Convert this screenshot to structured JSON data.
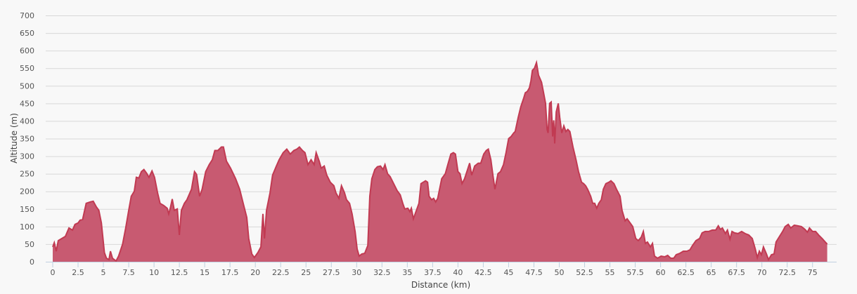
{
  "chart_data": {
    "type": "area",
    "title": "",
    "xlabel": "Distance (km)",
    "ylabel": "Altitude (m)",
    "xlim": [
      0,
      77.7
    ],
    "ylim": [
      0,
      700
    ],
    "x_ticks": [
      0,
      2.5,
      5,
      7.5,
      10,
      12.5,
      15,
      17.5,
      20,
      22.5,
      25,
      27.5,
      30,
      32.5,
      35,
      37.5,
      40,
      42.5,
      45,
      47.5,
      50,
      52.5,
      55,
      57.5,
      60,
      62.5,
      65,
      67.5,
      70,
      72.5,
      75
    ],
    "y_ticks": [
      0,
      50,
      100,
      150,
      200,
      250,
      300,
      350,
      400,
      450,
      500,
      550,
      600,
      650,
      700
    ],
    "grid": "horizontal",
    "legend": "none",
    "colors": {
      "fill": "#c85a71",
      "line": "#c13a52",
      "grid": "#d8d8d8",
      "axis": "#c0d0e0"
    },
    "series": [
      {
        "x": [
          0,
          0.15,
          0.35,
          0.55,
          0.9,
          1.25,
          1.6,
          1.95,
          2.2,
          2.5,
          2.7,
          2.95,
          3.3,
          3.7,
          4.0,
          4.3,
          4.55,
          4.8,
          5.1,
          5.3,
          5.55,
          5.7,
          5.9,
          6.25,
          6.5,
          6.9,
          7.2,
          7.5,
          7.75,
          8.05,
          8.25,
          8.5,
          8.75,
          9.0,
          9.3,
          9.5,
          9.8,
          10.05,
          10.35,
          10.6,
          10.95,
          11.3,
          11.45,
          11.6,
          11.8,
          12.0,
          12.3,
          12.5,
          12.7,
          13.0,
          13.25,
          13.7,
          14.0,
          14.2,
          14.5,
          14.75,
          15.1,
          15.45,
          15.75,
          16.0,
          16.3,
          16.65,
          16.85,
          17.15,
          17.55,
          18.05,
          18.45,
          18.8,
          19.15,
          19.35,
          19.65,
          19.9,
          20.25,
          20.55,
          20.75,
          20.9,
          21.1,
          21.45,
          21.7,
          22.05,
          22.35,
          22.75,
          23.1,
          23.45,
          23.8,
          24.1,
          24.35,
          24.65,
          24.9,
          25.2,
          25.5,
          25.8,
          26.0,
          26.3,
          26.5,
          26.8,
          27.05,
          27.4,
          27.75,
          27.95,
          28.25,
          28.5,
          28.8,
          29.0,
          29.3,
          29.55,
          29.85,
          30.05,
          30.25,
          30.5,
          30.8,
          31.1,
          31.3,
          31.5,
          31.8,
          32.05,
          32.35,
          32.6,
          32.8,
          33.05,
          33.3,
          33.65,
          34.0,
          34.3,
          34.55,
          34.75,
          35.05,
          35.25,
          35.4,
          35.6,
          35.9,
          36.15,
          36.35,
          36.8,
          37.0,
          37.15,
          37.4,
          37.6,
          37.8,
          38.0,
          38.4,
          38.75,
          39.0,
          39.3,
          39.55,
          39.75,
          40.0,
          40.2,
          40.4,
          40.65,
          40.95,
          41.15,
          41.35,
          41.65,
          42.0,
          42.25,
          42.55,
          42.8,
          43.0,
          43.25,
          43.45,
          43.65,
          43.95,
          44.2,
          44.5,
          44.75,
          45.0,
          45.25,
          45.5,
          45.65,
          45.95,
          46.2,
          46.5,
          46.65,
          46.85,
          47.05,
          47.2,
          47.35,
          47.55,
          47.75,
          47.95,
          48.25,
          48.45,
          48.65,
          48.8,
          48.9,
          49.05,
          49.2,
          49.35,
          49.45,
          49.55,
          49.7,
          49.9,
          50.05,
          50.25,
          50.45,
          50.65,
          50.85,
          51.05,
          51.35,
          51.65,
          51.9,
          52.2,
          52.4,
          52.6,
          52.8,
          53.1,
          53.3,
          53.5,
          53.7,
          53.9,
          54.15,
          54.35,
          54.6,
          54.9,
          55.1,
          55.4,
          55.65,
          56.0,
          56.2,
          56.5,
          56.7,
          57.0,
          57.25,
          57.55,
          57.8,
          58.1,
          58.3,
          58.5,
          58.7,
          59.0,
          59.2,
          59.4,
          59.7,
          60.05,
          60.4,
          60.7,
          61.0,
          61.3,
          61.55,
          61.9,
          62.25,
          62.6,
          62.9,
          63.15,
          63.5,
          63.85,
          64.1,
          64.4,
          64.75,
          65.1,
          65.45,
          65.7,
          65.9,
          66.1,
          66.4,
          66.6,
          66.85,
          67.05,
          67.3,
          67.65,
          68.0,
          68.35,
          68.7,
          69.05,
          69.35,
          69.55,
          69.75,
          69.95,
          70.15,
          70.45,
          70.65,
          70.95,
          71.2,
          71.4,
          71.7,
          72.05,
          72.3,
          72.6,
          72.85,
          73.2,
          73.55,
          73.9,
          74.25,
          74.5,
          74.7,
          75.0,
          75.3,
          75.6,
          75.95,
          76.25,
          76.45
        ],
        "y": [
          42,
          54,
          30,
          60,
          66,
          72,
          96,
          90,
          106,
          110,
          118,
          120,
          166,
          170,
          172,
          156,
          146,
          110,
          26,
          10,
          6,
          30,
          10,
          2,
          16,
          50,
          96,
          146,
          186,
          200,
          240,
          238,
          256,
          262,
          250,
          240,
          258,
          240,
          196,
          166,
          160,
          152,
          136,
          152,
          178,
          146,
          150,
          76,
          146,
          166,
          176,
          206,
          256,
          248,
          186,
          206,
          256,
          276,
          290,
          316,
          316,
          326,
          326,
          286,
          266,
          236,
          206,
          166,
          126,
          66,
          22,
          12,
          26,
          42,
          136,
          66,
          146,
          196,
          246,
          270,
          290,
          310,
          320,
          306,
          316,
          320,
          326,
          316,
          310,
          276,
          290,
          276,
          310,
          286,
          266,
          272,
          246,
          226,
          216,
          196,
          180,
          216,
          196,
          176,
          166,
          136,
          86,
          36,
          16,
          22,
          24,
          46,
          186,
          236,
          262,
          270,
          272,
          262,
          276,
          250,
          242,
          222,
          202,
          190,
          166,
          150,
          152,
          142,
          152,
          122,
          146,
          166,
          222,
          230,
          226,
          186,
          176,
          180,
          170,
          180,
          236,
          250,
          276,
          306,
          310,
          306,
          256,
          250,
          222,
          236,
          262,
          280,
          246,
          272,
          280,
          280,
          306,
          316,
          320,
          290,
          246,
          206,
          250,
          256,
          276,
          310,
          350,
          356,
          366,
          370,
          410,
          440,
          466,
          480,
          484,
          494,
          514,
          544,
          550,
          566,
          530,
          510,
          480,
          450,
          376,
          366,
          450,
          454,
          356,
          402,
          336,
          426,
          450,
          410,
          366,
          386,
          370,
          376,
          370,
          326,
          290,
          256,
          226,
          222,
          216,
          206,
          186,
          166,
          166,
          152,
          166,
          176,
          206,
          222,
          226,
          230,
          222,
          206,
          186,
          146,
          116,
          122,
          110,
          100,
          66,
          60,
          70,
          86,
          52,
          56,
          42,
          52,
          16,
          10,
          16,
          14,
          18,
          10,
          10,
          20,
          24,
          30,
          30,
          34,
          46,
          60,
          66,
          82,
          86,
          86,
          90,
          90,
          102,
          92,
          96,
          80,
          90,
          64,
          86,
          82,
          80,
          86,
          80,
          76,
          66,
          36,
          12,
          30,
          20,
          42,
          22,
          6,
          20,
          22,
          56,
          70,
          86,
          100,
          106,
          96,
          104,
          102,
          100,
          92,
          84,
          96,
          86,
          86,
          76,
          66,
          56,
          50
        ]
      }
    ]
  }
}
